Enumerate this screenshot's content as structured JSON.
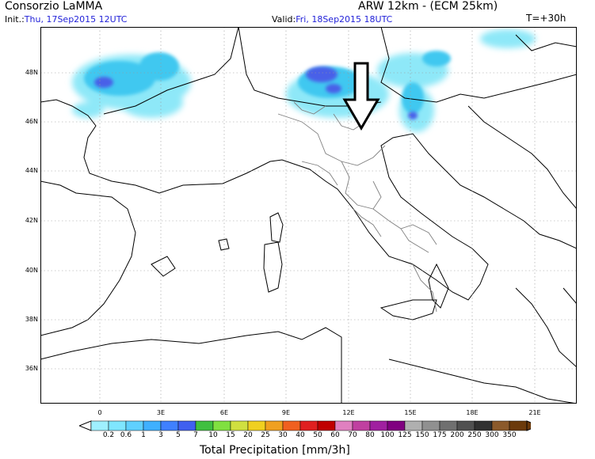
{
  "header": {
    "org": "Consorzio LaMMA",
    "model": "ARW 12km - (ECM 25km)",
    "init_label": "Init.:",
    "init_value": "Thu, 17Sep2015 12UTC",
    "valid_label": "Valid:",
    "valid_value": "Fri, 18Sep2015 18UTC",
    "step": "T=+30h"
  },
  "axes": {
    "x_ticks": [
      "0",
      "3E",
      "6E",
      "9E",
      "12E",
      "15E",
      "18E",
      "21E"
    ],
    "y_ticks": [
      "48N",
      "46N",
      "44N",
      "42N",
      "40N",
      "38N",
      "36N"
    ]
  },
  "colorbar": {
    "title": "Total Precipitation [mm/3h]",
    "labels": [
      "0.2",
      "0.6",
      "1",
      "3",
      "5",
      "7",
      "10",
      "15",
      "20",
      "25",
      "30",
      "40",
      "50",
      "60",
      "70",
      "80",
      "100",
      "125",
      "150",
      "175",
      "200",
      "250",
      "300",
      "350"
    ],
    "colors": [
      "#9ff0ff",
      "#7fe6ff",
      "#5fd0ff",
      "#3fb0ff",
      "#3f80ff",
      "#4060f0",
      "#40c040",
      "#80e040",
      "#d0e040",
      "#f0d020",
      "#f0a020",
      "#f06020",
      "#e02020",
      "#c00000",
      "#e080c0",
      "#c040a0",
      "#a020a0",
      "#800080",
      "#b0b0b0",
      "#909090",
      "#707070",
      "#505050",
      "#303030",
      "#8b5a2b",
      "#6b3a0b"
    ]
  },
  "colors": {
    "precip_light": "#8ee8f8",
    "precip_mid": "#40c8f0",
    "precip_heavy": "#4a60e8",
    "border": "#000000",
    "region_border": "#808080",
    "arrow": "#000000"
  },
  "annotation": {
    "arrow_icon": "down-arrow-icon"
  }
}
